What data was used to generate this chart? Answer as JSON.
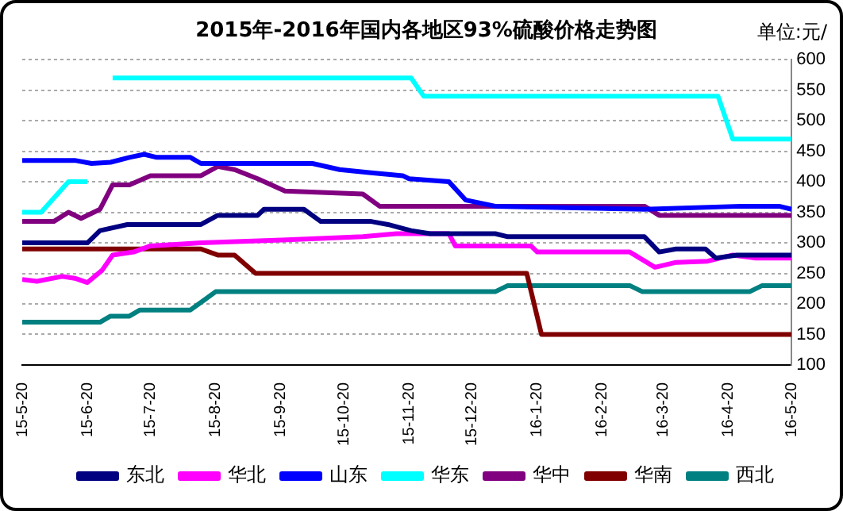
{
  "chart_data": {
    "type": "line",
    "title": "2015年-2016年国内各地区93%硫酸价格走势图",
    "ylabel": "单位:元/",
    "xlim": [
      "2015-05-20",
      "2016-05-20"
    ],
    "xticks": [
      {
        "value": "2015-05-20",
        "label": "15-5-20"
      },
      {
        "value": "2015-06-20",
        "label": "15-6-20"
      },
      {
        "value": "2015-07-20",
        "label": "15-7-20"
      },
      {
        "value": "2015-08-20",
        "label": "15-8-20"
      },
      {
        "value": "2015-09-20",
        "label": "15-9-20"
      },
      {
        "value": "2015-10-20",
        "label": "15-10-20"
      },
      {
        "value": "2015-11-20",
        "label": "15-11-20"
      },
      {
        "value": "2015-12-20",
        "label": "15-12-20"
      },
      {
        "value": "2016-01-20",
        "label": "16-1-20"
      },
      {
        "value": "2016-02-20",
        "label": "16-2-20"
      },
      {
        "value": "2016-03-20",
        "label": "16-3-20"
      },
      {
        "value": "2016-04-20",
        "label": "16-4-20"
      },
      {
        "value": "2016-05-20",
        "label": "16-5-20"
      }
    ],
    "ylim": [
      100,
      600
    ],
    "yticks": [
      100,
      150,
      200,
      250,
      300,
      350,
      400,
      450,
      500,
      550,
      600
    ],
    "grid": "y",
    "legend": "bottom",
    "marker": "none",
    "line_style": "solid",
    "series": [
      {
        "name": "东北",
        "color": "#000080",
        "x": [
          "2015-05-20",
          "2015-06-20",
          "2015-06-26",
          "2015-07-09",
          "2015-08-13",
          "2015-08-21",
          "2015-09-09",
          "2015-09-12",
          "2015-10-01",
          "2015-10-09",
          "2015-11-02",
          "2015-11-10",
          "2015-11-21",
          "2015-11-30",
          "2015-12-31",
          "2016-01-06",
          "2016-03-11",
          "2016-03-18",
          "2016-03-26",
          "2016-04-09",
          "2016-04-14",
          "2016-04-24",
          "2016-05-20"
        ],
        "values": [
          300,
          300,
          320,
          330,
          330,
          345,
          345,
          355,
          355,
          335,
          335,
          330,
          320,
          315,
          315,
          310,
          310,
          285,
          290,
          290,
          275,
          280,
          280
        ]
      },
      {
        "name": "华北",
        "color": "#ff00ff",
        "x": [
          "2015-05-20",
          "2015-05-27",
          "2015-06-08",
          "2015-06-14",
          "2015-06-20",
          "2015-06-27",
          "2015-07-02",
          "2015-07-12",
          "2015-07-20",
          "2015-08-13",
          "2015-09-23",
          "2015-10-29",
          "2015-11-14",
          "2015-12-09",
          "2015-12-12",
          "2016-01-17",
          "2016-01-20",
          "2016-03-04",
          "2016-03-16",
          "2016-03-26",
          "2016-04-10",
          "2016-04-22",
          "2016-05-03",
          "2016-05-20"
        ],
        "values": [
          240,
          237,
          245,
          242,
          235,
          255,
          280,
          285,
          295,
          300,
          305,
          310,
          315,
          315,
          295,
          295,
          285,
          285,
          260,
          268,
          270,
          280,
          275,
          275
        ]
      },
      {
        "name": "山东",
        "color": "#0000ff",
        "x": [
          "2015-05-20",
          "2015-06-14",
          "2015-06-22",
          "2015-07-01",
          "2015-07-10",
          "2015-07-17",
          "2015-07-23",
          "2015-08-08",
          "2015-08-13",
          "2015-10-05",
          "2015-10-18",
          "2015-11-01",
          "2015-11-17",
          "2015-11-20",
          "2015-12-09",
          "2015-12-17",
          "2015-12-31",
          "2016-03-11",
          "2016-04-26",
          "2016-05-14",
          "2016-05-20"
        ],
        "values": [
          435,
          435,
          430,
          432,
          440,
          445,
          440,
          440,
          430,
          430,
          420,
          415,
          410,
          405,
          400,
          370,
          360,
          355,
          360,
          360,
          355
        ]
      },
      {
        "name": "华东",
        "color": "#00ffff",
        "x": [
          "2015-05-20",
          "2015-05-29",
          "2015-06-11",
          "2015-06-20",
          "2015-06-26",
          "2015-07-02",
          "2015-11-21",
          "2015-11-27",
          "2016-04-15",
          "2016-04-22",
          "2016-05-20"
        ],
        "values": [
          350,
          350,
          400,
          400,
          null,
          570,
          570,
          540,
          540,
          470,
          470
        ]
      },
      {
        "name": "华中",
        "color": "#800080",
        "x": [
          "2015-05-20",
          "2015-06-04",
          "2015-06-11",
          "2015-06-17",
          "2015-06-26",
          "2015-07-02",
          "2015-07-10",
          "2015-07-20",
          "2015-08-13",
          "2015-08-21",
          "2015-08-29",
          "2015-09-09",
          "2015-09-22",
          "2015-10-29",
          "2015-11-06",
          "2016-03-11",
          "2016-03-18",
          "2016-05-20"
        ],
        "values": [
          335,
          335,
          350,
          340,
          355,
          395,
          395,
          410,
          410,
          425,
          420,
          405,
          385,
          380,
          360,
          360,
          345,
          345
        ]
      },
      {
        "name": "华南",
        "color": "#800000",
        "x": [
          "2015-05-20",
          "2015-08-13",
          "2015-08-21",
          "2015-08-29",
          "2015-09-08",
          "2016-01-15",
          "2016-01-22",
          "2016-05-20"
        ],
        "values": [
          290,
          290,
          280,
          280,
          250,
          250,
          150,
          150
        ]
      },
      {
        "name": "西北",
        "color": "#008080",
        "x": [
          "2015-05-20",
          "2015-06-26",
          "2015-07-01",
          "2015-07-10",
          "2015-07-15",
          "2015-08-08",
          "2015-08-20",
          "2015-12-31",
          "2016-01-06",
          "2016-03-04",
          "2016-03-10",
          "2016-04-30",
          "2016-05-06",
          "2016-05-20"
        ],
        "values": [
          170,
          170,
          180,
          180,
          190,
          190,
          220,
          220,
          230,
          230,
          220,
          220,
          230,
          230
        ]
      }
    ]
  }
}
